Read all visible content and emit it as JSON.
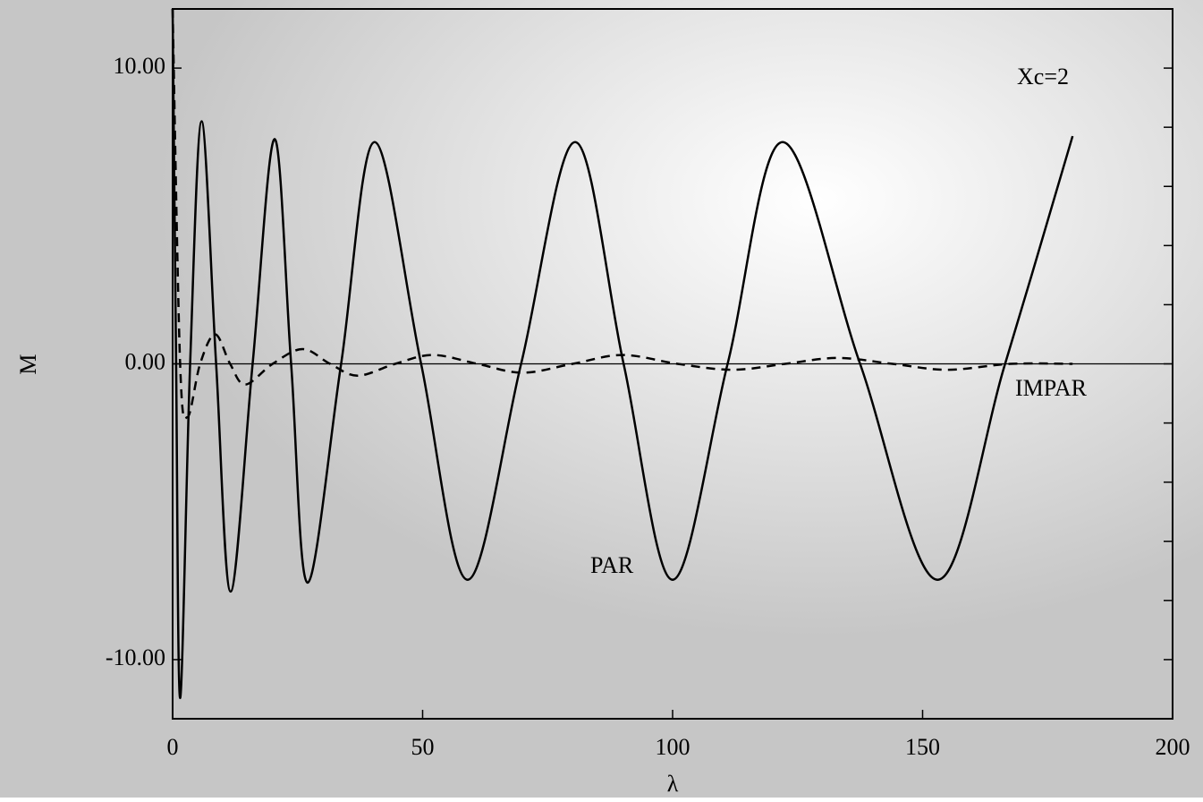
{
  "chart_data": {
    "type": "line",
    "annotation": "Xc=2",
    "xlabel": "λ",
    "ylabel": "M",
    "xlim": [
      0,
      200
    ],
    "ylim": [
      -12,
      12
    ],
    "xticks": [
      0,
      50,
      100,
      150,
      200
    ],
    "yticks": [
      {
        "value": -10,
        "label": "-10.00"
      },
      {
        "value": 0,
        "label": "0.00"
      },
      {
        "value": 10,
        "label": "10.00"
      }
    ],
    "yminor_ticks": [
      -12,
      -10,
      -8,
      -6,
      -4,
      -2,
      0,
      2,
      4,
      6,
      8,
      10,
      12
    ],
    "zero_line": true,
    "series": [
      {
        "name": "PAR",
        "color": "#000000",
        "line_style": "solid",
        "x": [
          0,
          0.7,
          1.5,
          3.5,
          5.8,
          8.7,
          11.6,
          16,
          20.4,
          23.7,
          27,
          33.7,
          40.4,
          49.7,
          59,
          69.7,
          80.5,
          90.2,
          100,
          111,
          122,
          137.5,
          153,
          166.5,
          180
        ],
        "values": [
          12,
          0,
          -11.3,
          0,
          8.2,
          0,
          -7.7,
          0,
          7.6,
          0,
          -7.4,
          0,
          7.5,
          0,
          -7.3,
          0,
          7.5,
          0,
          -7.3,
          0,
          7.5,
          0,
          -7.3,
          0,
          7.7
        ]
      },
      {
        "name": "IMPAR",
        "color": "#000000",
        "line_style": "dashed",
        "x": [
          0,
          1.5,
          3,
          5.5,
          8.5,
          11.5,
          14.5,
          20,
          26,
          31.5,
          37,
          44.5,
          52,
          61,
          70,
          80,
          90,
          101,
          112,
          122.5,
          133,
          144,
          155,
          167.5,
          180
        ],
        "values": [
          12,
          0,
          -1.8,
          0,
          1,
          0,
          -0.7,
          0,
          0.5,
          0,
          -0.4,
          0,
          0.3,
          0,
          -0.3,
          0,
          0.3,
          0,
          -0.2,
          0,
          0.2,
          0,
          -0.2,
          0,
          0
        ]
      }
    ]
  }
}
